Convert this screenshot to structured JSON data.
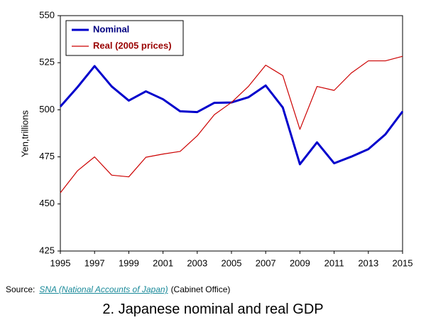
{
  "chart_data": {
    "type": "line",
    "x": [
      1995,
      1996,
      1997,
      1998,
      1999,
      2000,
      2001,
      2002,
      2003,
      2004,
      2005,
      2006,
      2007,
      2008,
      2009,
      2010,
      2011,
      2012,
      2013,
      2014,
      2015
    ],
    "series": [
      {
        "name": "Nominal",
        "color": "#0000cc",
        "values": [
          501.7,
          512.0,
          523.2,
          512.4,
          504.9,
          509.8,
          505.6,
          499.2,
          498.8,
          503.7,
          503.9,
          506.7,
          512.9,
          501.2,
          471.1,
          482.7,
          471.6,
          475.1,
          479.1,
          487.0,
          499.1
        ]
      },
      {
        "name": "Real (2005 prices)",
        "color": "#cc0000",
        "values": [
          455.9,
          467.6,
          475.0,
          465.3,
          464.4,
          474.8,
          476.5,
          477.9,
          486.2,
          497.4,
          503.9,
          512.5,
          523.7,
          518.2,
          489.6,
          512.4,
          510.3,
          519.5,
          526.0,
          526.0,
          528.4
        ]
      }
    ],
    "ylabel": "Yen,trillions",
    "xlim": [
      1995,
      2015
    ],
    "xticks": [
      1995,
      1997,
      1999,
      2001,
      2003,
      2005,
      2007,
      2009,
      2011,
      2013,
      2015
    ],
    "ylim": [
      425,
      550
    ],
    "yticks": [
      425,
      450,
      475,
      500,
      525,
      550
    ],
    "grid": false,
    "legend": "upper left"
  },
  "source": {
    "label": "Source:",
    "link": "SNA (National Accounts of Japan)",
    "suffix": "(Cabinet Office)"
  },
  "caption": "2. Japanese nominal and real GDP"
}
